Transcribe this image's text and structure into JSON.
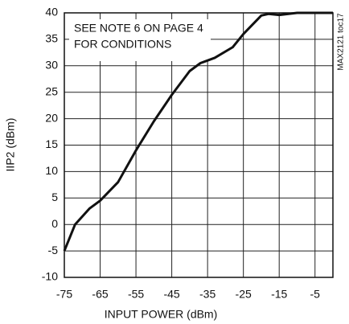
{
  "chart_data": {
    "type": "line",
    "x_label": "INPUT POWER (dBm)",
    "y_label": "IIP2 (dBm)",
    "annotations": [
      "SEE NOTE 6 ON PAGE 4",
      "FOR CONDITIONS"
    ],
    "figure_id": "MAX2121 toc17",
    "x": [
      -75,
      -72,
      -68,
      -65,
      -60,
      -55,
      -50,
      -45,
      -40,
      -37,
      -33,
      -28,
      -25,
      -20,
      -18,
      -15,
      -10,
      0
    ],
    "series": [
      {
        "name": "IIP2",
        "color": "#111111",
        "values": [
          -5,
          0,
          3,
          4.5,
          8,
          14,
          19.5,
          24.5,
          29,
          30.5,
          31.5,
          33.5,
          36,
          39.5,
          39.8,
          39.6,
          40,
          40
        ]
      }
    ],
    "xlim": [
      -75,
      0
    ],
    "xticks": [
      -75,
      -65,
      -55,
      -45,
      -35,
      -25,
      -15,
      -5
    ],
    "ylim": [
      -10,
      40
    ],
    "yticks": [
      -10,
      -5,
      0,
      5,
      10,
      15,
      20,
      25,
      30,
      35,
      40
    ],
    "grid": true
  }
}
